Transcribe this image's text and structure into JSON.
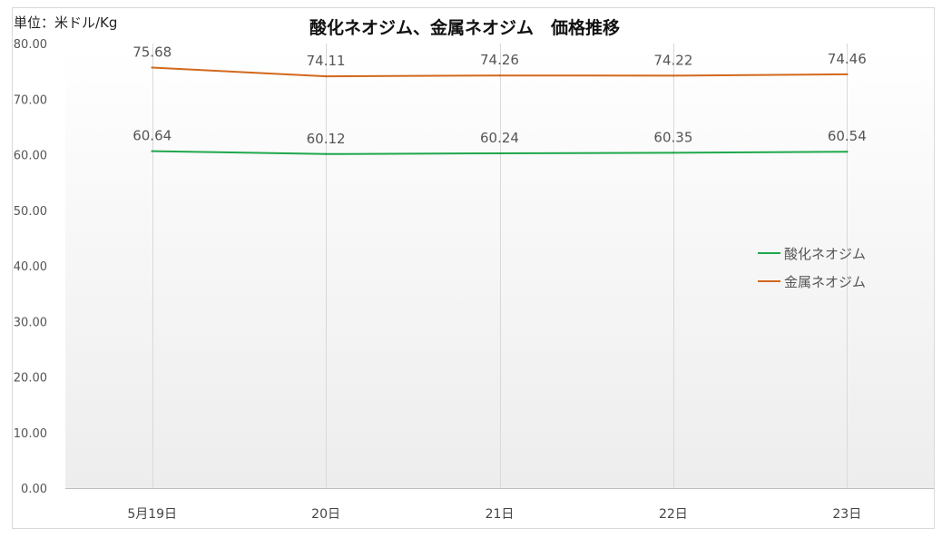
{
  "chart_data": {
    "type": "line",
    "title": "酸化ネオジム、金属ネオジム　価格推移",
    "unit_label": "単位：米ドル/Kg",
    "categories": [
      "5月19日",
      "20日",
      "21日",
      "22日",
      "23日"
    ],
    "series": [
      {
        "name": "酸化ネオジム",
        "color": "#1fa84b",
        "values": [
          60.64,
          60.12,
          60.24,
          60.35,
          60.54
        ],
        "labels": [
          "60.64",
          "60.12",
          "60.24",
          "60.35",
          "60.54"
        ]
      },
      {
        "name": "金属ネオジム",
        "color": "#d2691e",
        "values": [
          75.68,
          74.11,
          74.26,
          74.22,
          74.46
        ],
        "labels": [
          "75.68",
          "74.11",
          "74.26",
          "74.22",
          "74.46"
        ]
      }
    ],
    "ylim": [
      0,
      80
    ],
    "yticks": [
      "0.00",
      "10.00",
      "20.00",
      "30.00",
      "40.00",
      "50.00",
      "60.00",
      "70.00",
      "80.00"
    ],
    "grid": "vertical",
    "legend_position": "right"
  }
}
